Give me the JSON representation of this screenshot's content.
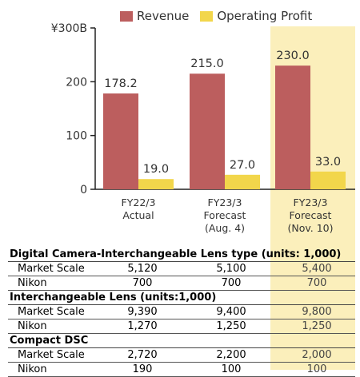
{
  "colors": {
    "revenue": "#bc5e5e",
    "operating_profit": "#f2d64b",
    "highlight": "#fbefbb",
    "axis": "#222222",
    "text": "#333333"
  },
  "legend": [
    "Revenue",
    "Operating Profit"
  ],
  "chart_data": {
    "type": "bar",
    "categories": [
      [
        "FY22/3",
        "Actual"
      ],
      [
        "FY23/3",
        "Forecast",
        "(Aug. 4)"
      ],
      [
        "FY23/3",
        "Forecast",
        "(Nov. 10)"
      ]
    ],
    "series": [
      {
        "name": "Revenue",
        "values": [
          178.2,
          215.0,
          230.0
        ],
        "labels": [
          "178.2",
          "215.0",
          "230.0"
        ]
      },
      {
        "name": "Operating Profit",
        "values": [
          19.0,
          27.0,
          33.0
        ],
        "labels": [
          "19.0",
          "27.0",
          "33.0"
        ]
      }
    ],
    "y_ticks": [
      0,
      100,
      200,
      300
    ],
    "y_tick_labels": [
      "0",
      "100",
      "200",
      "¥300B"
    ],
    "ylim": [
      0,
      300
    ],
    "highlighted_category": 2
  },
  "tables": [
    {
      "title": "Digital Camera-Interchangeable Lens type (units: 1,000)",
      "rows": [
        {
          "label": "Market Scale",
          "values": [
            "5,120",
            "5,100",
            "5,400"
          ]
        },
        {
          "label": "Nikon",
          "values": [
            "700",
            "700",
            "700"
          ]
        }
      ]
    },
    {
      "title": "Interchangeable Lens (units:1,000)",
      "rows": [
        {
          "label": "Market Scale",
          "values": [
            "9,390",
            "9,400",
            "9,800"
          ]
        },
        {
          "label": "Nikon",
          "values": [
            "1,270",
            "1,250",
            "1,250"
          ]
        }
      ]
    },
    {
      "title": "Compact DSC",
      "rows": [
        {
          "label": "Market Scale",
          "values": [
            "2,720",
            "2,200",
            "2,000"
          ]
        },
        {
          "label": "Nikon",
          "values": [
            "190",
            "100",
            "100"
          ]
        }
      ]
    }
  ]
}
